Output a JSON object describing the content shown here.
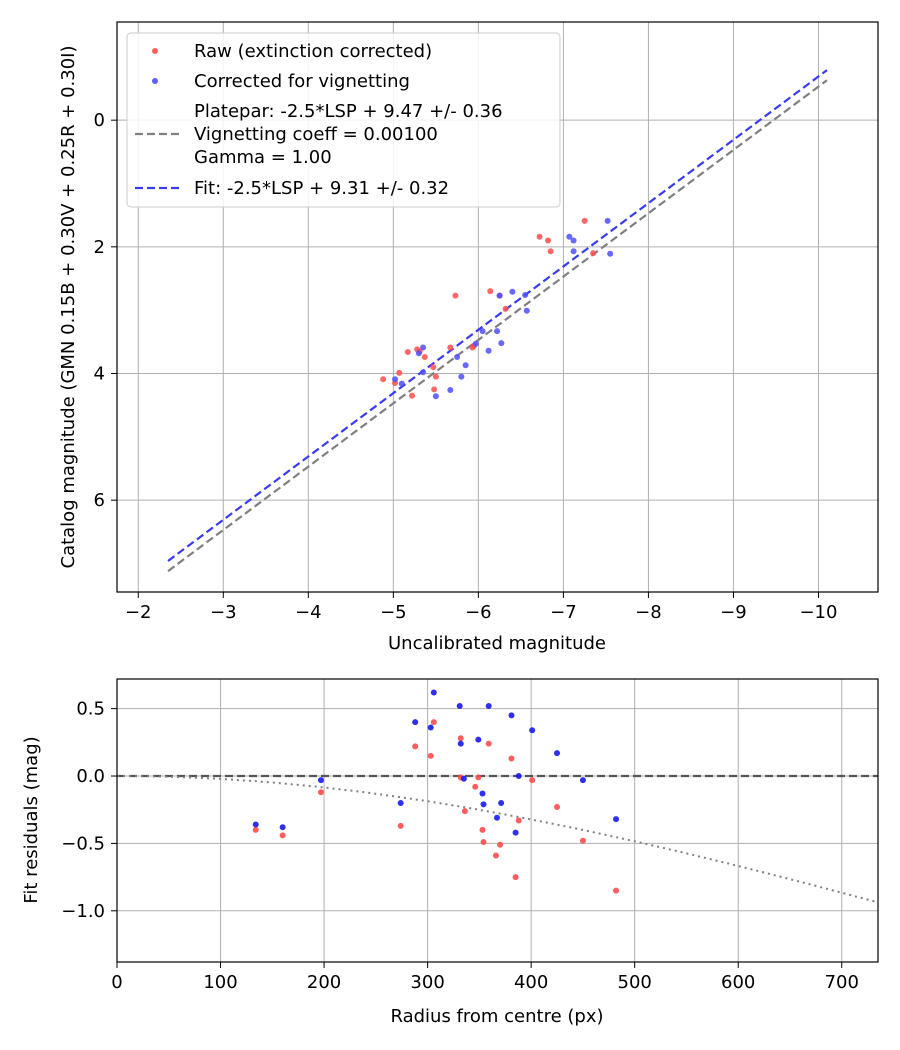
{
  "chart_data": [
    {
      "type": "scatter",
      "xlabel": "Uncalibrated magnitude",
      "ylabel": "Catalog magnitude (GMN 0.15B + 0.30V + 0.25R + 0.30I)",
      "xlim": [
        -1.75,
        -10.7
      ],
      "ylim": [
        7.45,
        -1.55
      ],
      "x_inverted": true,
      "y_inverted": true,
      "grid": true,
      "xticks": [
        -2,
        -3,
        -4,
        -5,
        -6,
        -7,
        -8,
        -9,
        -10
      ],
      "xtick_labels": [
        "−2",
        "−3",
        "−4",
        "−5",
        "−6",
        "−7",
        "−8",
        "−9",
        "−10"
      ],
      "yticks": [
        0,
        2,
        4,
        6
      ],
      "ytick_labels": [
        "0",
        "2",
        "4",
        "6"
      ],
      "legend_position": "top-left",
      "legend": [
        {
          "label": "Raw (extinction corrected)",
          "kind": "marker",
          "color": "#ff4d4d"
        },
        {
          "label": "Corrected for vignetting",
          "kind": "marker",
          "color": "#4d4dff"
        },
        {
          "label_lines": [
            "Platepar: -2.5*LSP + 9.47 +/- 0.36",
            "Vignetting coeff = 0.00100",
            "Gamma = 1.00"
          ],
          "kind": "line",
          "color": "#808080"
        },
        {
          "label": "Fit: -2.5*LSP + 9.31 +/- 0.32",
          "kind": "line",
          "color": "#3a3af0"
        }
      ],
      "lines": [
        {
          "name": "platepar",
          "intercept": 9.47,
          "slope": 1,
          "color": "#808080"
        },
        {
          "name": "fit",
          "intercept": 9.31,
          "slope": 1,
          "color": "#3a3af0"
        }
      ],
      "series": [
        {
          "name": "Raw (extinction corrected)",
          "color": "#ff4d4d",
          "points": [
            [
              -4.88,
              4.09
            ],
            [
              -5.02,
              4.15
            ],
            [
              -5.07,
              3.99
            ],
            [
              -5.17,
              3.66
            ],
            [
              -5.22,
              4.35
            ],
            [
              -5.28,
              3.62
            ],
            [
              -5.31,
              3.65
            ],
            [
              -5.37,
              3.74
            ],
            [
              -5.47,
              3.9
            ],
            [
              -5.48,
              4.25
            ],
            [
              -5.5,
              4.05
            ],
            [
              -5.67,
              3.59
            ],
            [
              -5.73,
              2.77
            ],
            [
              -5.93,
              3.59
            ],
            [
              -5.95,
              3.56
            ],
            [
              -6.14,
              2.7
            ],
            [
              -6.25,
              2.77
            ],
            [
              -6.32,
              2.98
            ],
            [
              -6.72,
              1.84
            ],
            [
              -6.82,
              1.9
            ],
            [
              -6.85,
              2.07
            ],
            [
              -7.25,
              1.59
            ],
            [
              -7.35,
              2.1
            ]
          ]
        },
        {
          "name": "Corrected for vignetting",
          "color": "#4d4dff",
          "points": [
            [
              -5.02,
              4.09
            ],
            [
              -5.1,
              4.16
            ],
            [
              -5.3,
              3.68
            ],
            [
              -5.35,
              3.59
            ],
            [
              -5.35,
              3.98
            ],
            [
              -5.5,
              4.36
            ],
            [
              -5.67,
              4.26
            ],
            [
              -5.75,
              3.74
            ],
            [
              -5.8,
              4.05
            ],
            [
              -5.85,
              3.87
            ],
            [
              -5.97,
              3.53
            ],
            [
              -6.05,
              3.33
            ],
            [
              -6.12,
              3.64
            ],
            [
              -6.22,
              3.33
            ],
            [
              -6.25,
              2.77
            ],
            [
              -6.27,
              3.52
            ],
            [
              -6.4,
              2.71
            ],
            [
              -6.55,
              2.76
            ],
            [
              -6.57,
              3.01
            ],
            [
              -7.07,
              1.84
            ],
            [
              -7.12,
              1.9
            ],
            [
              -7.12,
              2.07
            ],
            [
              -7.52,
              1.59
            ],
            [
              -7.55,
              2.11
            ]
          ]
        }
      ]
    },
    {
      "type": "scatter",
      "xlabel": "Radius from centre (px)",
      "ylabel": "Fit residuals (mag)",
      "xlim": [
        0,
        735
      ],
      "ylim": [
        -1.38,
        0.72
      ],
      "grid": true,
      "xticks": [
        0,
        100,
        200,
        300,
        400,
        500,
        600,
        700
      ],
      "xtick_labels": [
        "0",
        "100",
        "200",
        "300",
        "400",
        "500",
        "600",
        "700"
      ],
      "yticks": [
        0.5,
        0,
        -0.5,
        -1
      ],
      "ytick_labels": [
        "0.5",
        "0.0",
        "−0.5",
        "−1.0"
      ],
      "zero_line": {
        "y": 0,
        "color": "#555555"
      },
      "vignetting_curve": {
        "coeff": 0.001,
        "color": "#808080"
      },
      "series": [
        {
          "name": "Raw (extinction corrected)",
          "color": "#ff4d4d",
          "points": [
            [
              134,
              -0.4
            ],
            [
              160,
              -0.44
            ],
            [
              197,
              -0.12
            ],
            [
              274,
              -0.37
            ],
            [
              288,
              0.22
            ],
            [
              303,
              0.15
            ],
            [
              306,
              0.4
            ],
            [
              332,
              0.28
            ],
            [
              332,
              -0.01
            ],
            [
              336,
              -0.26
            ],
            [
              346,
              -0.08
            ],
            [
              349,
              -0.01
            ],
            [
              353,
              -0.4
            ],
            [
              354,
              -0.49
            ],
            [
              359,
              0.24
            ],
            [
              366,
              -0.59
            ],
            [
              370,
              -0.51
            ],
            [
              381,
              0.13
            ],
            [
              385,
              -0.75
            ],
            [
              388,
              -0.33
            ],
            [
              401,
              -0.03
            ],
            [
              425,
              -0.23
            ],
            [
              450,
              -0.48
            ],
            [
              482,
              -0.85
            ]
          ]
        },
        {
          "name": "Corrected for vignetting",
          "color": "#1a1aee",
          "points": [
            [
              134,
              -0.36
            ],
            [
              160,
              -0.38
            ],
            [
              197,
              -0.03
            ],
            [
              274,
              -0.2
            ],
            [
              288,
              0.4
            ],
            [
              303,
              0.36
            ],
            [
              306,
              0.62
            ],
            [
              331,
              0.52
            ],
            [
              332,
              0.24
            ],
            [
              335,
              -0.02
            ],
            [
              349,
              0.27
            ],
            [
              353,
              -0.13
            ],
            [
              354,
              -0.21
            ],
            [
              359,
              0.52
            ],
            [
              367,
              -0.31
            ],
            [
              371,
              -0.2
            ],
            [
              381,
              0.45
            ],
            [
              385,
              -0.42
            ],
            [
              388,
              0.0
            ],
            [
              401,
              0.34
            ],
            [
              425,
              0.17
            ],
            [
              450,
              -0.03
            ],
            [
              482,
              -0.32
            ]
          ]
        }
      ]
    }
  ]
}
